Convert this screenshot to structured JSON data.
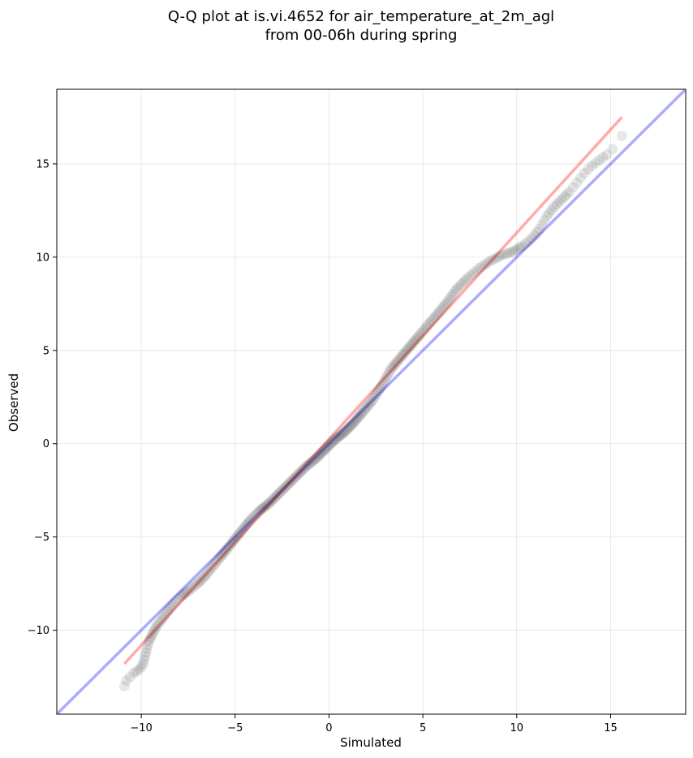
{
  "chart_data": {
    "type": "scatter",
    "title_line1": "Q-Q plot at is.vi.4652 for air_temperature_at_2m_agl",
    "title_line2": "from 00-06h during spring",
    "xlabel": "Simulated",
    "ylabel": "Observed",
    "xlim": [
      -14.5,
      19.0
    ],
    "ylim": [
      -14.5,
      19.0
    ],
    "xticks": [
      -10,
      -5,
      0,
      5,
      10,
      15
    ],
    "yticks": [
      -10,
      -5,
      0,
      5,
      10,
      15
    ],
    "xtick_labels": [
      "−10",
      "−5",
      "0",
      "5",
      "10",
      "15"
    ],
    "ytick_labels": [
      "−10",
      "−5",
      "0",
      "5",
      "10",
      "15"
    ],
    "grid": true,
    "reference_line_1to1": {
      "color": "#0000ff",
      "from": [
        -14.5,
        -14.5
      ],
      "to": [
        19.0,
        19.0
      ]
    },
    "fit_line": {
      "color": "#ff0000",
      "from": [
        -10.9,
        -11.8
      ],
      "to": [
        15.6,
        17.5
      ]
    },
    "points": [
      [
        -10.9,
        -13.0
      ],
      [
        -10.8,
        -12.7
      ],
      [
        -10.6,
        -12.5
      ],
      [
        -10.4,
        -12.3
      ],
      [
        -10.1,
        -12.1
      ],
      [
        -9.9,
        -11.8
      ],
      [
        -9.8,
        -11.4
      ],
      [
        -9.7,
        -11.0
      ],
      [
        -9.6,
        -10.6
      ],
      [
        -9.4,
        -10.2
      ],
      [
        -9.2,
        -9.8
      ],
      [
        -8.9,
        -9.4
      ],
      [
        -8.6,
        -9.0
      ],
      [
        -8.3,
        -8.6
      ],
      [
        -7.9,
        -8.2
      ],
      [
        -7.5,
        -7.9
      ],
      [
        -7.0,
        -7.5
      ],
      [
        -6.6,
        -7.1
      ],
      [
        -6.2,
        -6.6
      ],
      [
        -5.8,
        -6.1
      ],
      [
        -5.4,
        -5.6
      ],
      [
        -5.0,
        -5.1
      ],
      [
        -4.6,
        -4.6
      ],
      [
        -4.2,
        -4.1
      ],
      [
        -3.7,
        -3.6
      ],
      [
        -3.2,
        -3.2
      ],
      [
        -2.7,
        -2.7
      ],
      [
        -2.2,
        -2.2
      ],
      [
        -1.7,
        -1.7
      ],
      [
        -1.2,
        -1.2
      ],
      [
        -0.7,
        -0.8
      ],
      [
        -0.2,
        -0.3
      ],
      [
        0.3,
        0.2
      ],
      [
        0.8,
        0.6
      ],
      [
        1.3,
        1.1
      ],
      [
        1.8,
        1.7
      ],
      [
        2.3,
        2.3
      ],
      [
        2.8,
        3.1
      ],
      [
        3.3,
        4.0
      ],
      [
        3.8,
        4.6
      ],
      [
        4.3,
        5.2
      ],
      [
        4.8,
        5.8
      ],
      [
        5.3,
        6.4
      ],
      [
        5.8,
        7.0
      ],
      [
        6.3,
        7.6
      ],
      [
        6.8,
        8.3
      ],
      [
        7.4,
        8.9
      ],
      [
        8.0,
        9.4
      ],
      [
        8.6,
        9.8
      ],
      [
        9.2,
        10.1
      ],
      [
        9.8,
        10.3
      ],
      [
        10.3,
        10.6
      ],
      [
        10.8,
        11.0
      ],
      [
        11.2,
        11.5
      ],
      [
        11.6,
        12.2
      ],
      [
        12.0,
        12.7
      ],
      [
        12.4,
        13.1
      ],
      [
        12.8,
        13.5
      ],
      [
        13.2,
        14.0
      ],
      [
        13.6,
        14.5
      ],
      [
        14.0,
        14.9
      ],
      [
        14.4,
        15.2
      ],
      [
        14.8,
        15.5
      ],
      [
        15.1,
        15.8
      ],
      [
        15.6,
        16.5
      ]
    ]
  }
}
